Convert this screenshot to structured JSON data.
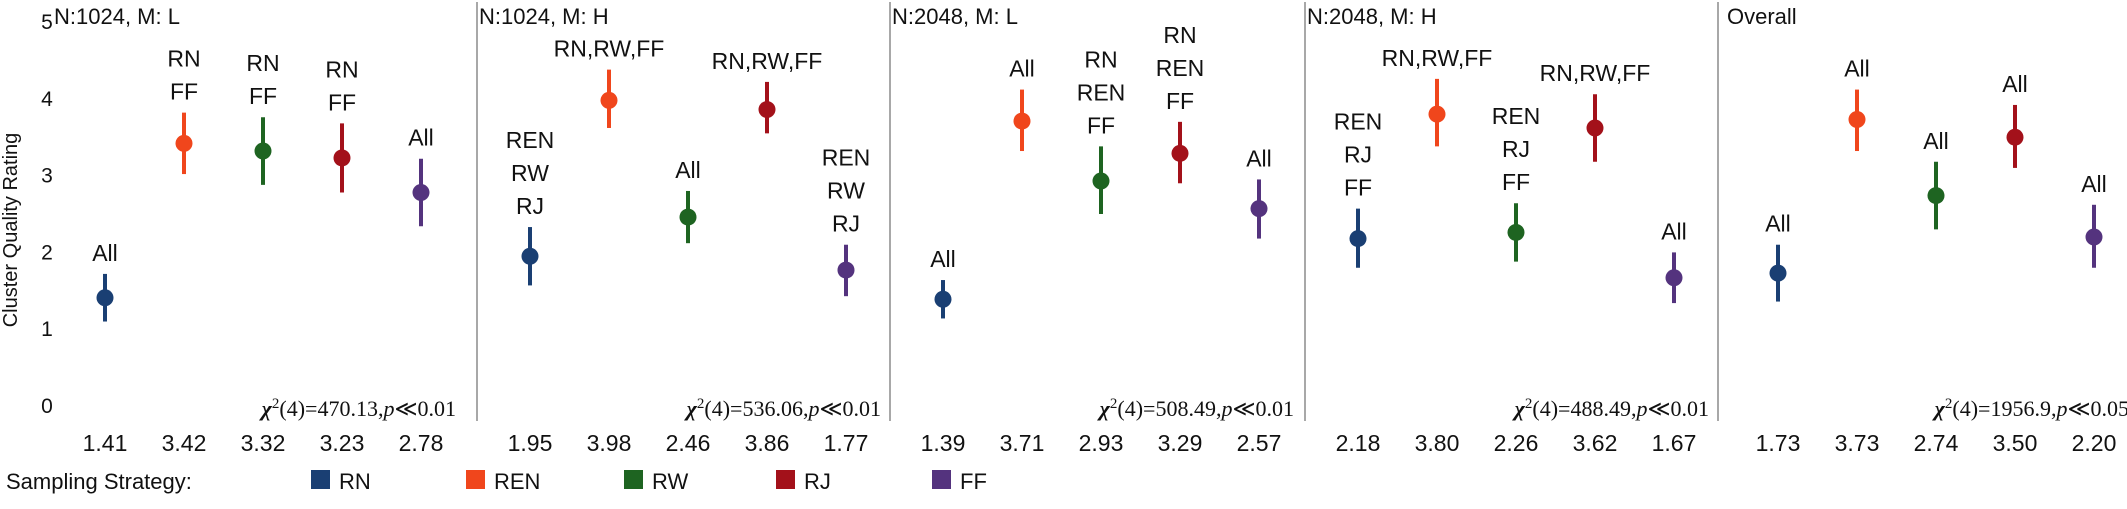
{
  "chart_data": {
    "type": "scatter",
    "ylabel": "Cluster Quality Rating",
    "ylim": [
      0,
      5
    ],
    "yticks": [
      "0",
      "1",
      "2",
      "3",
      "4",
      "5"
    ],
    "grid": false,
    "legend": {
      "title": "Sampling Strategy:",
      "placement": "bottom",
      "entries": [
        {
          "name": "RN",
          "color": "#1a3f73"
        },
        {
          "name": "REN",
          "color": "#f0461c"
        },
        {
          "name": "RW",
          "color": "#1e6421"
        },
        {
          "name": "RJ",
          "color": "#a3111a"
        },
        {
          "name": "FF",
          "color": "#54337e"
        }
      ]
    },
    "panels": [
      {
        "title": "N:1024, M: L",
        "stat": {
          "chi": "χ",
          "sup": "2",
          "rest": "(4)=470.13,",
          "p": "p",
          "tail": "≪0.01"
        },
        "points": [
          {
            "series": "RN",
            "mean": 1.41,
            "low": 1.1,
            "high": 1.72,
            "label": "1.41",
            "annotation": [
              "All"
            ]
          },
          {
            "series": "REN",
            "mean": 3.42,
            "low": 3.02,
            "high": 3.82,
            "label": "3.42",
            "annotation": [
              "RN",
              "FF"
            ]
          },
          {
            "series": "RW",
            "mean": 3.32,
            "low": 2.88,
            "high": 3.76,
            "label": "3.32",
            "annotation": [
              "RN",
              "FF"
            ]
          },
          {
            "series": "RJ",
            "mean": 3.23,
            "low": 2.78,
            "high": 3.68,
            "label": "3.23",
            "annotation": [
              "RN",
              "FF"
            ]
          },
          {
            "series": "FF",
            "mean": 2.78,
            "low": 2.34,
            "high": 3.22,
            "label": "2.78",
            "annotation": [
              "All"
            ]
          }
        ]
      },
      {
        "title": "N:1024, M: H",
        "stat": {
          "chi": "χ",
          "sup": "2",
          "rest": "(4)=536.06,",
          "p": "p",
          "tail": "≪0.01"
        },
        "points": [
          {
            "series": "RN",
            "mean": 1.95,
            "low": 1.57,
            "high": 2.33,
            "label": "1.95",
            "annotation": [
              "REN",
              "RW",
              "RJ"
            ]
          },
          {
            "series": "REN",
            "mean": 3.98,
            "low": 3.62,
            "high": 4.38,
            "label": "3.98",
            "annotation": [
              "RN,RW,FF"
            ]
          },
          {
            "series": "RW",
            "mean": 2.46,
            "low": 2.12,
            "high": 2.8,
            "label": "2.46",
            "annotation": [
              "All"
            ]
          },
          {
            "series": "RJ",
            "mean": 3.86,
            "low": 3.55,
            "high": 4.22,
            "label": "3.86",
            "annotation": [
              "RN,RW,FF"
            ]
          },
          {
            "series": "FF",
            "mean": 1.77,
            "low": 1.43,
            "high": 2.1,
            "label": "1.77",
            "annotation": [
              "REN",
              "RW",
              "RJ"
            ]
          }
        ]
      },
      {
        "title": "N:2048, M: L",
        "stat": {
          "chi": "χ",
          "sup": "2",
          "rest": "(4)=508.49,",
          "p": "p",
          "tail": "≪0.01"
        },
        "points": [
          {
            "series": "RN",
            "mean": 1.39,
            "low": 1.14,
            "high": 1.64,
            "label": "1.39",
            "annotation": [
              "All"
            ]
          },
          {
            "series": "REN",
            "mean": 3.71,
            "low": 3.32,
            "high": 4.12,
            "label": "3.71",
            "annotation": [
              "All"
            ]
          },
          {
            "series": "RW",
            "mean": 2.93,
            "low": 2.5,
            "high": 3.38,
            "label": "2.93",
            "annotation": [
              "RN",
              "REN",
              "FF"
            ]
          },
          {
            "series": "RJ",
            "mean": 3.29,
            "low": 2.9,
            "high": 3.7,
            "label": "3.29",
            "annotation": [
              "RN",
              "REN",
              "FF"
            ]
          },
          {
            "series": "FF",
            "mean": 2.57,
            "low": 2.18,
            "high": 2.95,
            "label": "2.57",
            "annotation": [
              "All"
            ]
          }
        ]
      },
      {
        "title": "N:2048, M: H",
        "stat": {
          "chi": "χ",
          "sup": "2",
          "rest": "(4)=488.49,",
          "p": "p",
          "tail": "≪0.01"
        },
        "points": [
          {
            "series": "RN",
            "mean": 2.18,
            "low": 1.8,
            "high": 2.57,
            "label": "2.18",
            "annotation": [
              "REN",
              "RJ",
              "FF"
            ]
          },
          {
            "series": "REN",
            "mean": 3.8,
            "low": 3.38,
            "high": 4.26,
            "label": "3.80",
            "annotation": [
              "RN,RW,FF"
            ]
          },
          {
            "series": "RW",
            "mean": 2.26,
            "low": 1.88,
            "high": 2.64,
            "label": "2.26",
            "annotation": [
              "REN",
              "RJ",
              "FF"
            ]
          },
          {
            "series": "RJ",
            "mean": 3.62,
            "low": 3.18,
            "high": 4.06,
            "label": "3.62",
            "annotation": [
              "RN,RW,FF"
            ]
          },
          {
            "series": "FF",
            "mean": 1.67,
            "low": 1.34,
            "high": 2.0,
            "label": "1.67",
            "annotation": [
              "All"
            ]
          }
        ]
      },
      {
        "title": "Overall",
        "stat": {
          "chi": "χ",
          "sup": "2",
          "rest": "(4)=1956.9,",
          "p": "p",
          "tail": "≪0.05"
        },
        "points": [
          {
            "series": "RN",
            "mean": 1.73,
            "low": 1.36,
            "high": 2.1,
            "label": "1.73",
            "annotation": [
              "All"
            ]
          },
          {
            "series": "REN",
            "mean": 3.73,
            "low": 3.32,
            "high": 4.12,
            "label": "3.73",
            "annotation": [
              "All"
            ]
          },
          {
            "series": "RW",
            "mean": 2.74,
            "low": 2.3,
            "high": 3.18,
            "label": "2.74",
            "annotation": [
              "All"
            ]
          },
          {
            "series": "RJ",
            "mean": 3.5,
            "low": 3.1,
            "high": 3.92,
            "label": "3.50",
            "annotation": [
              "All"
            ]
          },
          {
            "series": "FF",
            "mean": 2.2,
            "low": 1.8,
            "high": 2.62,
            "label": "2.20",
            "annotation": [
              "All"
            ]
          }
        ]
      }
    ]
  }
}
